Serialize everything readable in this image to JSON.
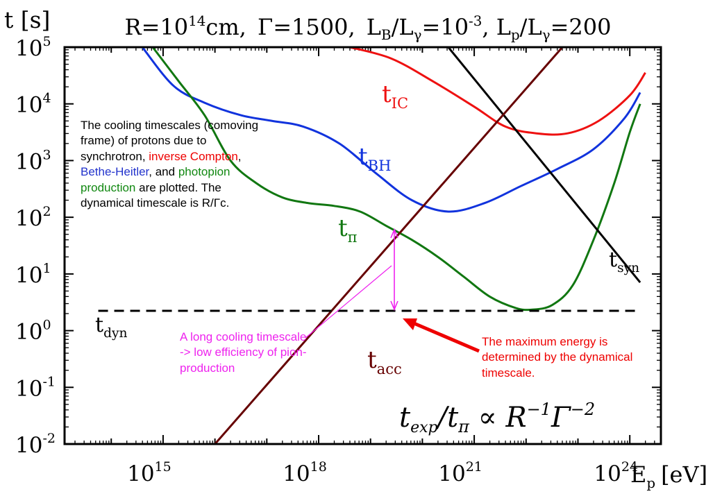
{
  "title": {
    "text": "R=10^14cm, Γ=1500, L_B/L_γ=10^-3, L_p/L_γ=200",
    "r_base": "R=10",
    "r_exp": "14",
    "r_unit": "cm,",
    "gamma": "Γ=1500,",
    "lb": "L",
    "lb_sub": "B",
    "lb_slash": "/L",
    "lb_gsub": "γ",
    "lb_eq": "=10",
    "lb_exp": "-3",
    "lp": ", L",
    "lp_sub": "p",
    "lp_slash": "/L",
    "lp_gsub": "γ",
    "lp_eq": "=200"
  },
  "axes": {
    "ylabel": "t [s]",
    "xlabel_main": "E",
    "xlabel_sub": "p",
    "xlabel_unit": "[eV]",
    "y_ticks": [
      {
        "base": "10",
        "exp": "5"
      },
      {
        "base": "10",
        "exp": "4"
      },
      {
        "base": "10",
        "exp": "3"
      },
      {
        "base": "10",
        "exp": "2"
      },
      {
        "base": "10",
        "exp": "1"
      },
      {
        "base": "10",
        "exp": "0"
      },
      {
        "base": "10",
        "exp": "-1"
      },
      {
        "base": "10",
        "exp": "-2"
      }
    ],
    "x_ticks": [
      {
        "base": "10",
        "exp": "15"
      },
      {
        "base": "10",
        "exp": "18"
      },
      {
        "base": "10",
        "exp": "21"
      },
      {
        "base": "10",
        "exp": "24"
      }
    ]
  },
  "curve_labels": {
    "ic": {
      "main": "t",
      "sub": "IC"
    },
    "bh": {
      "main": "t",
      "sub": "BH"
    },
    "pi": {
      "main": "t",
      "sub": "π"
    },
    "syn": {
      "main": "t",
      "sub": "syn"
    },
    "dyn": {
      "main": "t",
      "sub": "dyn"
    },
    "acc": {
      "main": "t",
      "sub": "acc"
    }
  },
  "annotations": {
    "description": [
      {
        "text": "The cooling timescales (comoving frame) of protons due to synchrotron, ",
        "color": "#000000"
      },
      {
        "text": "inverse Compton",
        "color": "#ee0000"
      },
      {
        "text": ", ",
        "color": "#000000"
      },
      {
        "text": "Bethe-Heitler",
        "color": "#2233cc"
      },
      {
        "text": ", and ",
        "color": "#000000"
      },
      {
        "text": "photopion production",
        "color": "#118811"
      },
      {
        "text": " are plotted. The dynamical timescale is R/Γc.",
        "color": "#000000"
      }
    ],
    "long_cooling": "A long cooling timescale -> low efficiency of pion-production",
    "max_energy": "The maximum energy is determined by the dynamical timescale.",
    "formula": {
      "t": "t",
      "exp": "exp",
      "slash": "/t",
      "pi": "π",
      "prop": " ∝ R",
      "r_exp": "−1",
      "g": "Γ",
      "g_exp": "−2"
    }
  },
  "colors": {
    "ic": "#ee1111",
    "bh": "#1133dd",
    "pi": "#117711",
    "syn": "#000000",
    "acc": "#660000",
    "dyn": "#000000",
    "magenta": "#ee22ee",
    "arrow": "#ee0000"
  },
  "chart_data": {
    "type": "line",
    "x_scale": "log",
    "y_scale": "log",
    "xlim_log10": [
      13.1,
      24.6
    ],
    "ylim_log10": [
      -2,
      5
    ],
    "xlabel": "Ep [eV]",
    "ylabel": "t [s]",
    "series": [
      {
        "name": "t_IC",
        "color": "#ee1111",
        "x_log10": [
          18.6,
          19.4,
          20.2,
          21.0,
          21.6,
          22.2,
          22.8,
          23.4,
          24.0,
          24.3
        ],
        "y_log10": [
          5.0,
          4.8,
          4.4,
          3.95,
          3.6,
          3.48,
          3.48,
          3.7,
          4.15,
          4.55
        ]
      },
      {
        "name": "t_BH",
        "color": "#1133dd",
        "x_log10": [
          14.6,
          15.2,
          15.8,
          16.5,
          17.1,
          17.7,
          18.4,
          19.1,
          19.8,
          20.5,
          21.2,
          21.9,
          22.6,
          23.3,
          23.9,
          24.2
        ],
        "y_log10": [
          5.0,
          4.32,
          4.02,
          3.8,
          3.7,
          3.6,
          3.3,
          2.78,
          2.3,
          2.1,
          2.25,
          2.55,
          2.85,
          3.2,
          3.75,
          4.2
        ]
      },
      {
        "name": "t_π",
        "color": "#117711",
        "x_log10": [
          14.8,
          15.3,
          15.8,
          16.3,
          16.8,
          17.3,
          17.8,
          18.3,
          18.8,
          19.3,
          19.8,
          20.3,
          20.8,
          21.3,
          21.8,
          22.1,
          22.5,
          22.9,
          23.3,
          23.7,
          24.0,
          24.2
        ],
        "y_log10": [
          5.0,
          4.4,
          3.8,
          3.0,
          2.6,
          2.35,
          2.25,
          2.2,
          2.1,
          1.85,
          1.6,
          1.3,
          0.95,
          0.6,
          0.4,
          0.37,
          0.45,
          0.8,
          1.6,
          2.6,
          3.5,
          4.0
        ]
      },
      {
        "name": "t_syn",
        "color": "#000000",
        "x_log10": [
          20.5,
          24.2
        ],
        "y_log10": [
          5.0,
          0.85
        ]
      },
      {
        "name": "t_acc",
        "color": "#660000",
        "x_log10": [
          16.0,
          22.7
        ],
        "y_log10": [
          -2.0,
          5.0
        ]
      },
      {
        "name": "t_dyn",
        "color": "#000000",
        "dashed": true,
        "x_log10": [
          13.75,
          24.2
        ],
        "y_log10": [
          0.35,
          0.35
        ]
      }
    ]
  }
}
